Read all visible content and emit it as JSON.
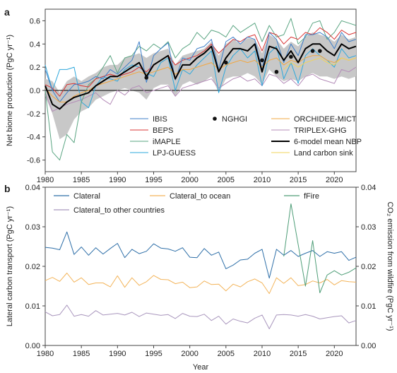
{
  "chart_data": [
    {
      "panel": "a",
      "type": "line",
      "ylabel": "Net biome production (PgC yr⁻¹)",
      "xlabel": "",
      "xlim": [
        1980,
        2023
      ],
      "ylim": [
        -0.7,
        0.7
      ],
      "x_ticks": [
        1980,
        1985,
        1990,
        1995,
        2000,
        2005,
        2010,
        2015,
        2020
      ],
      "y_ticks": [
        -0.6,
        -0.4,
        -0.2,
        0.0,
        0.2,
        0.4,
        0.6
      ],
      "zero_line": true,
      "legend_position": "bottom-right",
      "legend_columns": 3,
      "x": [
        1980,
        1981,
        1982,
        1983,
        1984,
        1985,
        1986,
        1987,
        1988,
        1989,
        1990,
        1991,
        1992,
        1993,
        1994,
        1995,
        1996,
        1997,
        1998,
        1999,
        2000,
        2001,
        2002,
        2003,
        2004,
        2005,
        2006,
        2007,
        2008,
        2009,
        2010,
        2011,
        2012,
        2013,
        2014,
        2015,
        2016,
        2017,
        2018,
        2019,
        2020,
        2021,
        2022,
        2023
      ],
      "band": {
        "color": "#c8c8c8",
        "lower": [
          -0.05,
          -0.2,
          -0.42,
          -0.38,
          -0.25,
          -0.18,
          -0.15,
          -0.08,
          -0.05,
          -0.02,
          0.0,
          0.02,
          0.0,
          -0.02,
          -0.08,
          0.02,
          0.05,
          0.05,
          -0.05,
          0.05,
          0.08,
          0.05,
          0.08,
          0.12,
          -0.02,
          0.1,
          0.12,
          0.12,
          0.15,
          0.12,
          0.05,
          0.18,
          0.12,
          0.08,
          0.1,
          0.08,
          0.12,
          0.15,
          0.12,
          0.12,
          0.1,
          0.12,
          0.1,
          0.12
        ],
        "upper": [
          0.1,
          0.08,
          -0.02,
          0.08,
          0.12,
          0.08,
          0.12,
          0.15,
          0.2,
          0.22,
          0.22,
          0.28,
          0.3,
          0.32,
          0.28,
          0.32,
          0.34,
          0.36,
          0.22,
          0.3,
          0.32,
          0.34,
          0.36,
          0.42,
          0.3,
          0.4,
          0.44,
          0.4,
          0.45,
          0.44,
          0.32,
          0.48,
          0.44,
          0.36,
          0.42,
          0.38,
          0.46,
          0.5,
          0.48,
          0.46,
          0.42,
          0.48,
          0.44,
          0.46
        ]
      },
      "series": [
        {
          "name": "IBIS",
          "color": "#3d7ec9",
          "width": 1,
          "values": [
            0.18,
            0.0,
            -0.1,
            -0.02,
            0.05,
            0.06,
            0.08,
            0.12,
            0.1,
            0.18,
            0.14,
            0.2,
            0.26,
            0.42,
            0.07,
            0.3,
            0.36,
            0.41,
            0.09,
            0.28,
            0.26,
            0.36,
            0.38,
            0.44,
            0.18,
            0.42,
            0.46,
            0.4,
            0.46,
            0.44,
            0.18,
            0.5,
            0.44,
            0.24,
            0.4,
            0.3,
            0.48,
            0.48,
            0.5,
            0.46,
            0.36,
            0.5,
            0.42,
            0.44
          ]
        },
        {
          "name": "BEPS",
          "color": "#d93434",
          "width": 1,
          "values": [
            0.05,
            0.02,
            -0.05,
            0.05,
            0.06,
            0.04,
            0.03,
            0.1,
            0.12,
            0.14,
            0.12,
            0.14,
            0.16,
            0.2,
            0.16,
            0.22,
            0.26,
            0.3,
            0.22,
            0.26,
            0.28,
            0.3,
            0.34,
            0.4,
            0.32,
            0.38,
            0.44,
            0.42,
            0.46,
            0.48,
            0.34,
            0.5,
            0.48,
            0.4,
            0.46,
            0.44,
            0.5,
            0.48,
            0.54,
            0.5,
            0.44,
            0.52,
            0.48,
            0.5
          ]
        },
        {
          "name": "iMAPLE",
          "color": "#5aa582",
          "width": 1,
          "values": [
            0.0,
            -0.53,
            -0.6,
            -0.38,
            -0.45,
            -0.1,
            0.05,
            0.1,
            0.2,
            0.3,
            0.15,
            0.28,
            0.3,
            0.38,
            0.34,
            0.4,
            0.36,
            0.42,
            0.28,
            0.36,
            0.4,
            0.5,
            0.44,
            0.52,
            0.5,
            0.46,
            0.56,
            0.5,
            0.54,
            0.58,
            0.42,
            0.56,
            0.46,
            0.48,
            0.62,
            0.4,
            0.46,
            0.58,
            0.6,
            0.44,
            0.5,
            0.6,
            0.58,
            0.56
          ]
        },
        {
          "name": "LPJ-GUESS",
          "color": "#2ea8dc",
          "width": 1,
          "values": [
            0.22,
            0.0,
            0.18,
            0.18,
            0.2,
            -0.1,
            -0.15,
            0.04,
            0.12,
            0.1,
            0.08,
            0.18,
            0.22,
            0.2,
            0.15,
            0.12,
            0.24,
            0.28,
            0.0,
            0.18,
            0.14,
            0.22,
            0.28,
            0.34,
            -0.02,
            0.2,
            0.3,
            0.36,
            0.28,
            0.34,
            0.04,
            0.32,
            0.38,
            0.1,
            0.24,
            0.06,
            0.3,
            0.36,
            0.3,
            0.26,
            0.2,
            0.36,
            0.28,
            0.3
          ]
        },
        {
          "name": "ORCHIDEE-MICT",
          "color": "#f2a740",
          "width": 1,
          "values": [
            0.02,
            -0.05,
            -0.1,
            -0.1,
            -0.05,
            -0.02,
            0.0,
            0.04,
            0.06,
            0.08,
            0.1,
            0.12,
            0.14,
            0.16,
            0.14,
            0.16,
            0.18,
            0.2,
            0.14,
            0.18,
            0.18,
            0.2,
            0.22,
            0.24,
            0.18,
            0.22,
            0.24,
            0.26,
            0.24,
            0.26,
            0.2,
            0.26,
            0.28,
            0.22,
            0.26,
            0.24,
            0.28,
            0.3,
            0.3,
            0.26,
            0.24,
            0.28,
            0.26,
            0.28
          ]
        },
        {
          "name": "TRIPLEX-GHG",
          "color": "#b48cb8",
          "width": 1,
          "values": [
            -0.02,
            -0.18,
            -0.15,
            -0.12,
            -0.1,
            -0.08,
            -0.05,
            -0.02,
            -0.08,
            -0.12,
            0.0,
            -0.04,
            0.02,
            0.04,
            -0.02,
            0.0,
            0.02,
            0.04,
            -0.05,
            0.02,
            0.04,
            0.06,
            0.08,
            0.1,
            0.02,
            0.06,
            0.1,
            0.12,
            0.08,
            0.1,
            0.04,
            0.14,
            0.12,
            0.06,
            0.1,
            0.04,
            0.12,
            0.14,
            0.1,
            0.08,
            0.06,
            0.18,
            0.16,
            0.2
          ]
        },
        {
          "name": "6-model mean NBP",
          "color": "#000000",
          "width": 2,
          "values": [
            0.04,
            -0.12,
            -0.16,
            -0.1,
            -0.06,
            -0.04,
            -0.02,
            0.04,
            0.08,
            0.12,
            0.12,
            0.16,
            0.2,
            0.24,
            0.12,
            0.22,
            0.26,
            0.3,
            0.1,
            0.22,
            0.22,
            0.28,
            0.32,
            0.38,
            0.16,
            0.28,
            0.36,
            0.36,
            0.34,
            0.4,
            0.16,
            0.38,
            0.36,
            0.26,
            0.34,
            0.24,
            0.36,
            0.4,
            0.4,
            0.34,
            0.3,
            0.4,
            0.36,
            0.38
          ]
        },
        {
          "name": "Land carbon sink",
          "color": "#f1d45a",
          "width": 1,
          "values": [
            null,
            null,
            null,
            null,
            null,
            null,
            null,
            null,
            null,
            null,
            null,
            null,
            null,
            null,
            null,
            null,
            null,
            null,
            null,
            null,
            null,
            null,
            null,
            null,
            null,
            null,
            null,
            null,
            null,
            null,
            null,
            null,
            null,
            0.18,
            0.24,
            0.2,
            0.24,
            0.26,
            0.28,
            0.24,
            0.22,
            0.28,
            0.26,
            0.28
          ]
        }
      ],
      "points": {
        "name": "NGHGI",
        "color": "#111111",
        "x": [
          1994,
          2005,
          2010,
          2012,
          2014,
          2017,
          2018
        ],
        "y": [
          0.11,
          0.24,
          0.26,
          0.16,
          0.29,
          0.34,
          0.34
        ]
      }
    },
    {
      "panel": "b",
      "type": "line",
      "xlabel": "Year",
      "ylabel": "Lateral carbon transport (PgC yr⁻¹)",
      "ylabel_right": "CO₂ emission from wildfire (PgC yr⁻¹)",
      "xlim": [
        1980,
        2023
      ],
      "ylim": [
        0.0,
        0.04
      ],
      "ylim_right": [
        0.0,
        0.04
      ],
      "x_ticks": [
        1980,
        1985,
        1990,
        1995,
        2000,
        2005,
        2010,
        2015,
        2020
      ],
      "y_ticks": [
        "0.00",
        "0.01",
        "0.02",
        "0.03",
        "0.04"
      ],
      "y_ticks_right": [
        "0.00",
        "0.01",
        "0.02",
        "0.03",
        "0.04"
      ],
      "legend_position": "top",
      "x": [
        1980,
        1981,
        1982,
        1983,
        1984,
        1985,
        1986,
        1987,
        1988,
        1989,
        1990,
        1991,
        1992,
        1993,
        1994,
        1995,
        1996,
        1997,
        1998,
        1999,
        2000,
        2001,
        2002,
        2003,
        2004,
        2005,
        2006,
        2007,
        2008,
        2009,
        2010,
        2011,
        2012,
        2013,
        2014,
        2015,
        2016,
        2017,
        2018,
        2019,
        2020,
        2021,
        2022,
        2023
      ],
      "series": [
        {
          "name": "Clateral",
          "color": "#2e6fa8",
          "axis": "left",
          "values": [
            0.0248,
            0.0246,
            0.0242,
            0.0287,
            0.023,
            0.0249,
            0.0228,
            0.0247,
            0.0231,
            0.0245,
            0.0258,
            0.0222,
            0.0243,
            0.0232,
            0.0238,
            0.0257,
            0.0246,
            0.0244,
            0.0238,
            0.0247,
            0.0223,
            0.0222,
            0.0245,
            0.0228,
            0.0236,
            0.0194,
            0.0203,
            0.0216,
            0.0218,
            0.0233,
            0.0243,
            0.017,
            0.0243,
            0.0228,
            0.024,
            0.0225,
            0.0233,
            0.024,
            0.0225,
            0.0237,
            0.0233,
            0.0237,
            0.0215,
            0.0223
          ]
        },
        {
          "name": "Clateral_to ocean",
          "color": "#f3b45a",
          "axis": "left",
          "values": [
            0.0164,
            0.0172,
            0.0162,
            0.0183,
            0.016,
            0.0171,
            0.0154,
            0.0158,
            0.0158,
            0.0148,
            0.0176,
            0.0147,
            0.0171,
            0.0152,
            0.0161,
            0.0177,
            0.0167,
            0.0166,
            0.0156,
            0.016,
            0.0146,
            0.0148,
            0.0163,
            0.0154,
            0.0155,
            0.0138,
            0.0155,
            0.0148,
            0.0161,
            0.0168,
            0.0158,
            0.0131,
            0.0171,
            0.0157,
            0.0171,
            0.0151,
            0.0154,
            0.0163,
            0.0158,
            0.0167,
            0.0153,
            0.0164,
            0.0161,
            0.016
          ]
        },
        {
          "name": "fFire",
          "color": "#4f9e78",
          "axis": "right",
          "values": [
            null,
            null,
            null,
            null,
            null,
            null,
            null,
            null,
            null,
            null,
            null,
            null,
            null,
            null,
            null,
            null,
            null,
            null,
            null,
            null,
            null,
            null,
            null,
            null,
            null,
            null,
            null,
            null,
            null,
            null,
            null,
            null,
            null,
            0.0225,
            0.0358,
            0.0255,
            0.015,
            0.0265,
            0.0133,
            0.0178,
            0.0189,
            0.0178,
            0.0185,
            0.0196
          ]
        },
        {
          "name": "Clateral_to other countries",
          "color": "#a996bd",
          "axis": "left",
          "values": [
            0.0085,
            0.0075,
            0.0078,
            0.0102,
            0.0074,
            0.0078,
            0.0074,
            0.0088,
            0.0077,
            0.0079,
            0.0081,
            0.0077,
            0.0084,
            0.0073,
            0.0082,
            0.0079,
            0.0076,
            0.0078,
            0.0068,
            0.0081,
            0.0074,
            0.0073,
            0.0079,
            0.0063,
            0.0074,
            0.0054,
            0.0067,
            0.0061,
            0.0057,
            0.0069,
            0.0077,
            0.0042,
            0.0077,
            0.0078,
            0.0077,
            0.0074,
            0.0078,
            0.0074,
            0.0067,
            0.007,
            0.0073,
            0.0075,
            0.0057,
            0.0063
          ]
        }
      ]
    }
  ]
}
